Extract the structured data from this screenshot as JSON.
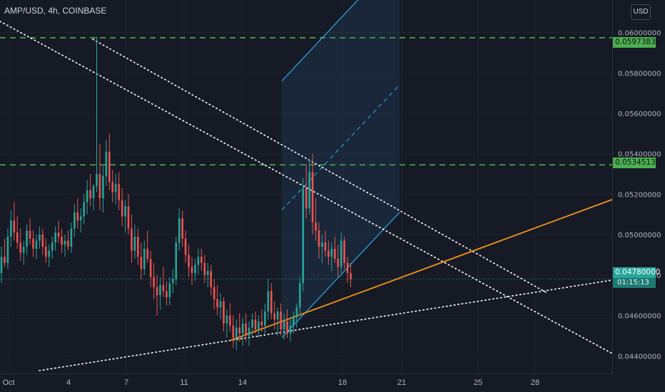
{
  "header": {
    "symbol_title": "AMP/USD, 4h, COINBASE",
    "currency_button": "USD"
  },
  "colors": {
    "background": "#161a25",
    "grid": "#1f2330",
    "up_candle": "#26a69a",
    "down_candle": "#ef5350",
    "support_resistance": "#4caf50",
    "trendline": "#f7931a",
    "channel": "#29b6f6",
    "dotted_lines": "#ffffff",
    "axis_text": "#b2b5be"
  },
  "price_tags": {
    "upper_level": "0.05973838",
    "lower_level": "0.05345130",
    "last_price": "0.04780000",
    "countdown": "01:15:13"
  },
  "chart_data": {
    "type": "candlestick",
    "title": "AMP/USD, 4h, COINBASE",
    "xlabel": "",
    "ylabel": "",
    "ylim": [
      0.0432,
      0.0615
    ],
    "grid": true,
    "y_ticks": [
      "0.04400000",
      "0.04600000",
      "0.04800000",
      "0.05000000",
      "0.05200000",
      "0.05400000",
      "0.05600000",
      "0.05800000",
      "0.06000000"
    ],
    "x_ticks": [
      "Oct",
      "4",
      "7",
      "11",
      "14",
      "18",
      "21",
      "25",
      "28"
    ],
    "ohlc": [
      [
        0.0481,
        0.0494,
        0.0476,
        0.0489
      ],
      [
        0.0489,
        0.0498,
        0.0484,
        0.0486
      ],
      [
        0.0486,
        0.0503,
        0.0483,
        0.0499
      ],
      [
        0.0499,
        0.0512,
        0.0494,
        0.0507
      ],
      [
        0.0507,
        0.0516,
        0.0497,
        0.0501
      ],
      [
        0.0501,
        0.0509,
        0.0493,
        0.0496
      ],
      [
        0.0496,
        0.0503,
        0.0487,
        0.0491
      ],
      [
        0.0491,
        0.0497,
        0.0485,
        0.0494
      ],
      [
        0.0494,
        0.0505,
        0.049,
        0.0502
      ],
      [
        0.0502,
        0.0508,
        0.0495,
        0.0498
      ],
      [
        0.0498,
        0.0502,
        0.0489,
        0.0493
      ],
      [
        0.0493,
        0.05,
        0.0488,
        0.0497
      ],
      [
        0.0497,
        0.0504,
        0.0493,
        0.05
      ],
      [
        0.05,
        0.0503,
        0.049,
        0.0494
      ],
      [
        0.0494,
        0.0498,
        0.0486,
        0.0489
      ],
      [
        0.0489,
        0.0495,
        0.0484,
        0.0492
      ],
      [
        0.0492,
        0.0499,
        0.0488,
        0.0496
      ],
      [
        0.0496,
        0.0504,
        0.0492,
        0.0501
      ],
      [
        0.0501,
        0.0507,
        0.0496,
        0.0499
      ],
      [
        0.0499,
        0.0503,
        0.0491,
        0.0495
      ],
      [
        0.0495,
        0.05,
        0.0489,
        0.0497
      ],
      [
        0.0497,
        0.0502,
        0.0492,
        0.0494
      ],
      [
        0.0494,
        0.0506,
        0.0491,
        0.0503
      ],
      [
        0.0503,
        0.0515,
        0.0499,
        0.0511
      ],
      [
        0.0511,
        0.0518,
        0.0503,
        0.0507
      ],
      [
        0.0507,
        0.0513,
        0.0501,
        0.0509
      ],
      [
        0.0509,
        0.052,
        0.0505,
        0.0516
      ],
      [
        0.0516,
        0.0527,
        0.051,
        0.0522
      ],
      [
        0.0522,
        0.053,
        0.0514,
        0.0518
      ],
      [
        0.0518,
        0.0525,
        0.0512,
        0.0524
      ],
      [
        0.0524,
        0.0598,
        0.0521,
        0.053
      ],
      [
        0.053,
        0.0545,
        0.0512,
        0.0518
      ],
      [
        0.0518,
        0.0534,
        0.0511,
        0.0529
      ],
      [
        0.0529,
        0.0547,
        0.0524,
        0.0541
      ],
      [
        0.0541,
        0.055,
        0.0522,
        0.0526
      ],
      [
        0.0526,
        0.0532,
        0.0516,
        0.0521
      ],
      [
        0.0521,
        0.053,
        0.0515,
        0.0525
      ],
      [
        0.0525,
        0.0531,
        0.0512,
        0.0517
      ],
      [
        0.0517,
        0.0523,
        0.0504,
        0.0509
      ],
      [
        0.0509,
        0.0517,
        0.0501,
        0.0514
      ],
      [
        0.0514,
        0.052,
        0.05,
        0.0503
      ],
      [
        0.0503,
        0.051,
        0.0486,
        0.0492
      ],
      [
        0.0492,
        0.0505,
        0.0488,
        0.0499
      ],
      [
        0.0499,
        0.0503,
        0.0485,
        0.0489
      ],
      [
        0.0489,
        0.0496,
        0.0478,
        0.0483
      ],
      [
        0.0483,
        0.0497,
        0.048,
        0.0493
      ],
      [
        0.0493,
        0.0502,
        0.0486,
        0.0488
      ],
      [
        0.0488,
        0.0492,
        0.0474,
        0.0479
      ],
      [
        0.0479,
        0.0486,
        0.0468,
        0.0474
      ],
      [
        0.0474,
        0.048,
        0.046,
        0.047
      ],
      [
        0.047,
        0.0479,
        0.0463,
        0.0475
      ],
      [
        0.0475,
        0.0484,
        0.0469,
        0.0472
      ],
      [
        0.0472,
        0.0477,
        0.0465,
        0.0469
      ],
      [
        0.0469,
        0.0479,
        0.0465,
        0.0476
      ],
      [
        0.0476,
        0.0483,
        0.0471,
        0.0478
      ],
      [
        0.0478,
        0.0499,
        0.0475,
        0.0496
      ],
      [
        0.0496,
        0.0513,
        0.0492,
        0.0508
      ],
      [
        0.0508,
        0.0512,
        0.0494,
        0.0498
      ],
      [
        0.0498,
        0.0502,
        0.0486,
        0.049
      ],
      [
        0.049,
        0.0495,
        0.0479,
        0.0484
      ],
      [
        0.0484,
        0.0489,
        0.0475,
        0.0481
      ],
      [
        0.0481,
        0.0488,
        0.0477,
        0.0485
      ],
      [
        0.0485,
        0.0493,
        0.048,
        0.0489
      ],
      [
        0.0489,
        0.0493,
        0.0482,
        0.0486
      ],
      [
        0.0486,
        0.049,
        0.0476,
        0.048
      ],
      [
        0.048,
        0.0486,
        0.0474,
        0.0482
      ],
      [
        0.0482,
        0.0485,
        0.047,
        0.0474
      ],
      [
        0.0474,
        0.0478,
        0.0463,
        0.0468
      ],
      [
        0.0468,
        0.0475,
        0.046,
        0.0464
      ],
      [
        0.0464,
        0.0471,
        0.0458,
        0.0467
      ],
      [
        0.0467,
        0.0469,
        0.0452,
        0.0456
      ],
      [
        0.0456,
        0.0463,
        0.0449,
        0.046
      ],
      [
        0.046,
        0.0466,
        0.0452,
        0.0455
      ],
      [
        0.0455,
        0.046,
        0.0444,
        0.0449
      ],
      [
        0.0449,
        0.0458,
        0.0443,
        0.0454
      ],
      [
        0.0454,
        0.0461,
        0.0447,
        0.0451
      ],
      [
        0.0451,
        0.0459,
        0.0445,
        0.0456
      ],
      [
        0.0456,
        0.0461,
        0.0447,
        0.045
      ],
      [
        0.045,
        0.0457,
        0.0445,
        0.0454
      ],
      [
        0.0454,
        0.0461,
        0.0449,
        0.0458
      ],
      [
        0.0458,
        0.0462,
        0.0451,
        0.0453
      ],
      [
        0.0453,
        0.046,
        0.0449,
        0.0457
      ],
      [
        0.0457,
        0.0463,
        0.0452,
        0.0455
      ],
      [
        0.0455,
        0.0466,
        0.0451,
        0.0462
      ],
      [
        0.0462,
        0.0478,
        0.0458,
        0.0472
      ],
      [
        0.0472,
        0.0476,
        0.0458,
        0.0461
      ],
      [
        0.0461,
        0.0467,
        0.0453,
        0.0458
      ],
      [
        0.0458,
        0.0464,
        0.045,
        0.0462
      ],
      [
        0.0462,
        0.0466,
        0.045,
        0.0453
      ],
      [
        0.0453,
        0.0461,
        0.0448,
        0.0457
      ],
      [
        0.0457,
        0.0463,
        0.0449,
        0.0451
      ],
      [
        0.0451,
        0.0458,
        0.0447,
        0.0455
      ],
      [
        0.0455,
        0.0462,
        0.0451,
        0.0459
      ],
      [
        0.0459,
        0.0466,
        0.0454,
        0.0464
      ],
      [
        0.0464,
        0.0479,
        0.046,
        0.0476
      ],
      [
        0.0476,
        0.0528,
        0.0472,
        0.0523
      ],
      [
        0.0523,
        0.0535,
        0.0508,
        0.0513
      ],
      [
        0.0513,
        0.0537,
        0.051,
        0.0531
      ],
      [
        0.0531,
        0.054,
        0.05,
        0.0506
      ],
      [
        0.0506,
        0.0518,
        0.0497,
        0.0502
      ],
      [
        0.0502,
        0.0506,
        0.0488,
        0.0494
      ],
      [
        0.0494,
        0.05,
        0.0486,
        0.0496
      ],
      [
        0.0496,
        0.0502,
        0.0489,
        0.0492
      ],
      [
        0.0492,
        0.0497,
        0.0485,
        0.0489
      ],
      [
        0.0489,
        0.0496,
        0.0482,
        0.0493
      ],
      [
        0.0493,
        0.0499,
        0.0486,
        0.0488
      ],
      [
        0.0488,
        0.0495,
        0.0479,
        0.0484
      ],
      [
        0.0484,
        0.0501,
        0.0481,
        0.0497
      ],
      [
        0.0497,
        0.0499,
        0.0483,
        0.0486
      ],
      [
        0.0486,
        0.0489,
        0.0476,
        0.0481
      ],
      [
        0.0481,
        0.0486,
        0.0474,
        0.0478
      ]
    ],
    "levels": [
      {
        "name": "upper-resistance",
        "price": 0.05973838,
        "style": "dashed"
      },
      {
        "name": "lower-resistance",
        "price": 0.0534513,
        "style": "dashed"
      },
      {
        "name": "last-price",
        "price": 0.0478,
        "style": "dotted"
      }
    ]
  }
}
